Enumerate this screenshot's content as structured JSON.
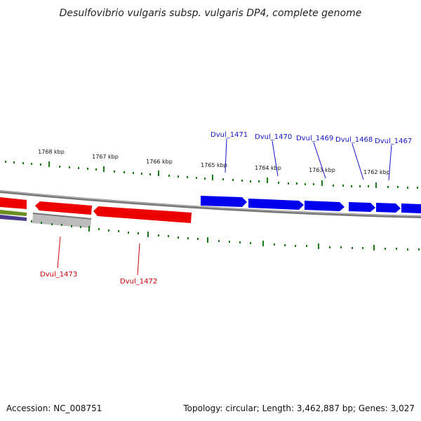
{
  "title": "Desulfovibrio vulgaris subsp. vulgaris DP4, complete genome",
  "footer": {
    "accession": "Accession: NC_008751",
    "summary": "Topology: circular; Length: 3,462,887 bp; Genes: 3,027"
  },
  "colors": {
    "forward_gene": "#0000ee",
    "reverse_gene": "#ee0000",
    "unknown_gene": "#bbbbbb",
    "backbone": "#777777",
    "tick": "#1a7a1a",
    "label_blue": "#1111cc",
    "label_red": "#cc0000"
  },
  "ticks": {
    "labels": [
      "1768 kbp",
      "1767 kbp",
      "1766 kbp",
      "1765 kbp",
      "1764 kbp",
      "1763 kbp",
      "1762 kbp"
    ]
  },
  "genes": {
    "forward": [
      "Dvul_1471",
      "Dvul_1470",
      "Dvul_1469",
      "Dvul_1468",
      "Dvul_1467"
    ],
    "reverse": [
      "Dvul_1473",
      "Dvul_1472"
    ]
  }
}
